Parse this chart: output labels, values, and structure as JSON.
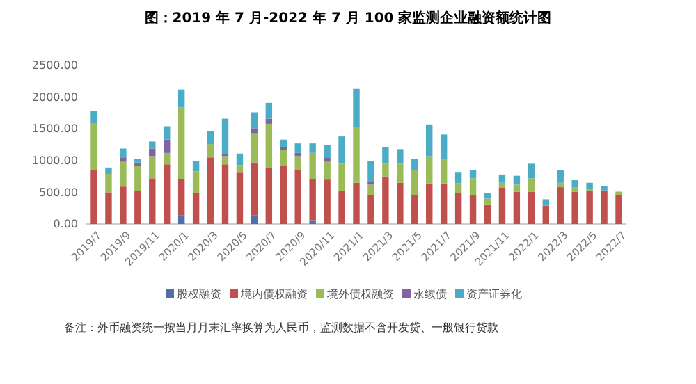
{
  "chart_data": {
    "type": "bar",
    "stacked": true,
    "title": "图：2019 年 7 月-2022 年 7 月 100 家监测企业融资额统计图",
    "categories": [
      "2019/7",
      null,
      "2019/9",
      null,
      "2019/11",
      null,
      "2020/1",
      null,
      "2020/3",
      null,
      "2020/5",
      null,
      "2020/7",
      null,
      "2020/9",
      null,
      "2020/11",
      null,
      "2021/1",
      null,
      "2021/3",
      null,
      "2021/5",
      null,
      "2021/7",
      null,
      "2021/9",
      null,
      "2021/11",
      null,
      "2022/1",
      null,
      "2022/3",
      null,
      "2022/5",
      null,
      "2022/7"
    ],
    "series": [
      {
        "name": "股权融资",
        "color": "#4f6fa8",
        "values": [
          0,
          0,
          0,
          0,
          0,
          0,
          140,
          0,
          0,
          0,
          0,
          140,
          0,
          0,
          0,
          60,
          0,
          0,
          0,
          0,
          0,
          0,
          0,
          0,
          0,
          0,
          0,
          0,
          0,
          0,
          0,
          0,
          0,
          0,
          0,
          0,
          0
        ]
      },
      {
        "name": "境内债权融资",
        "color": "#c0504d",
        "values": [
          850,
          500,
          590,
          520,
          720,
          940,
          570,
          490,
          1050,
          940,
          820,
          830,
          880,
          920,
          850,
          650,
          700,
          520,
          650,
          450,
          750,
          650,
          460,
          640,
          640,
          490,
          450,
          310,
          570,
          510,
          510,
          290,
          580,
          510,
          520,
          530,
          450
        ]
      },
      {
        "name": "境外债权融资",
        "color": "#9bbb59",
        "values": [
          740,
          290,
          390,
          400,
          350,
          180,
          1130,
          340,
          210,
          130,
          110,
          460,
          700,
          250,
          220,
          410,
          280,
          430,
          880,
          170,
          200,
          300,
          390,
          430,
          390,
          150,
          270,
          90,
          80,
          110,
          210,
          0,
          70,
          70,
          30,
          0,
          60
        ]
      },
      {
        "name": "永续债",
        "color": "#8064a2",
        "values": [
          0,
          0,
          70,
          50,
          120,
          210,
          0,
          0,
          0,
          30,
          0,
          80,
          80,
          40,
          50,
          0,
          70,
          0,
          0,
          40,
          0,
          0,
          0,
          0,
          0,
          0,
          0,
          0,
          0,
          0,
          0,
          0,
          0,
          0,
          0,
          0,
          0
        ]
      },
      {
        "name": "资产证券化",
        "color": "#4bacc6",
        "values": [
          190,
          100,
          140,
          50,
          110,
          210,
          280,
          160,
          200,
          560,
          180,
          250,
          250,
          120,
          150,
          150,
          200,
          430,
          600,
          330,
          260,
          230,
          180,
          500,
          380,
          180,
          130,
          90,
          130,
          140,
          230,
          100,
          200,
          110,
          100,
          70,
          0
        ]
      }
    ],
    "ylim": [
      0,
      2500
    ],
    "yticks": [
      {
        "value": 0,
        "label": "0.00"
      },
      {
        "value": 500,
        "label": "500.00"
      },
      {
        "value": 1000,
        "label": "1000.00"
      },
      {
        "value": 1500,
        "label": "1500.00"
      },
      {
        "value": 2000,
        "label": "2000.00"
      },
      {
        "value": 2500,
        "label": "2500.00"
      }
    ],
    "grid": false,
    "legend": "bottom",
    "annotations": [
      "备注：外币融资统一按当月月末汇率换算为人民币，监测数据不含开发贷、一般银行贷款"
    ]
  }
}
